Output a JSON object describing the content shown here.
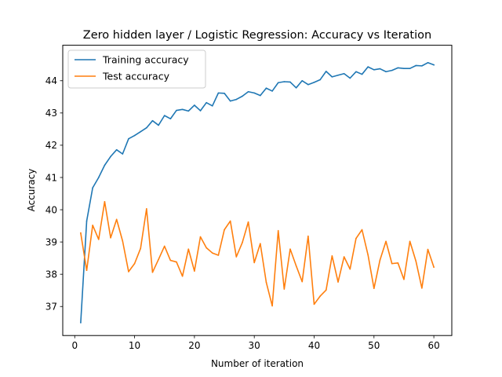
{
  "chart_data": {
    "type": "line",
    "title": "Zero hidden layer / Logistic Regression: Accuracy vs Iteration",
    "xlabel": "Number of iteration",
    "ylabel": "Accuracy",
    "xlim": [
      -2,
      63
    ],
    "ylim": [
      36.1,
      45.1
    ],
    "xticks": [
      0,
      10,
      20,
      30,
      40,
      50,
      60
    ],
    "yticks": [
      37,
      38,
      39,
      40,
      41,
      42,
      43,
      44
    ],
    "grid": false,
    "legend_position": "top-left",
    "x": [
      1,
      2,
      3,
      4,
      5,
      6,
      7,
      8,
      9,
      10,
      11,
      12,
      13,
      14,
      15,
      16,
      17,
      18,
      19,
      20,
      21,
      22,
      23,
      24,
      25,
      26,
      27,
      28,
      29,
      30,
      31,
      32,
      33,
      34,
      35,
      36,
      37,
      38,
      39,
      40,
      41,
      42,
      43,
      44,
      45,
      46,
      47,
      48,
      49,
      50,
      51,
      52,
      53,
      54,
      55,
      56,
      57,
      58,
      59,
      60
    ],
    "series": [
      {
        "name": "Training accuracy",
        "color": "#1f77b4",
        "values": [
          36.5,
          39.65,
          40.68,
          41.0,
          41.38,
          41.65,
          41.86,
          41.73,
          42.2,
          42.3,
          42.42,
          42.54,
          42.76,
          42.62,
          42.92,
          42.82,
          43.08,
          43.11,
          43.06,
          43.24,
          43.07,
          43.32,
          43.22,
          43.62,
          43.61,
          43.37,
          43.42,
          43.52,
          43.66,
          43.62,
          43.54,
          43.77,
          43.68,
          43.94,
          43.97,
          43.96,
          43.78,
          44.0,
          43.88,
          43.95,
          44.03,
          44.29,
          44.12,
          44.17,
          44.22,
          44.08,
          44.28,
          44.2,
          44.43,
          44.34,
          44.37,
          44.28,
          44.32,
          44.4,
          44.38,
          44.38,
          44.47,
          44.46,
          44.56,
          44.49
        ]
      },
      {
        "name": "Test accuracy",
        "color": "#ff7f0e",
        "values": [
          39.28,
          38.12,
          39.52,
          39.08,
          40.25,
          39.13,
          39.7,
          39.03,
          38.08,
          38.33,
          38.8,
          40.03,
          38.06,
          38.46,
          38.87,
          38.43,
          38.38,
          37.94,
          38.78,
          38.1,
          39.16,
          38.82,
          38.66,
          38.59,
          39.38,
          39.65,
          38.54,
          38.98,
          39.62,
          38.36,
          38.95,
          37.75,
          37.02,
          39.35,
          37.54,
          38.78,
          38.26,
          37.77,
          39.18,
          37.07,
          37.32,
          37.51,
          38.57,
          37.76,
          38.54,
          38.16,
          39.11,
          39.38,
          38.6,
          37.56,
          38.44,
          39.02,
          38.33,
          38.35,
          37.84,
          39.02,
          38.41,
          37.57,
          38.77,
          38.22
        ]
      }
    ]
  }
}
